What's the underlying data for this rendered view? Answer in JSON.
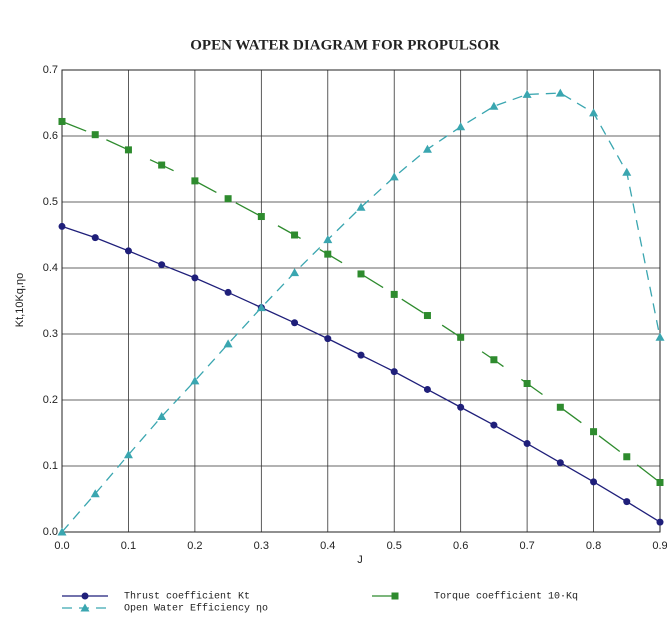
{
  "chart_data": {
    "type": "line",
    "title": "OPEN WATER DIAGRAM FOR PROPULSOR",
    "x_label": "J",
    "y_label": "Kt,10Kq,ηo",
    "x": [
      0,
      0.05,
      0.1,
      0.15,
      0.2,
      0.25,
      0.3,
      0.35,
      0.4,
      0.45,
      0.5,
      0.55,
      0.6,
      0.65,
      0.7,
      0.75,
      0.8,
      0.85,
      0.9
    ],
    "series": [
      {
        "name": "Thrust coefficient Kt",
        "color": "#1f1f7a",
        "marker": "circle",
        "dash": "none",
        "values": [
          0.463,
          0.446,
          0.426,
          0.405,
          0.385,
          0.363,
          0.34,
          0.317,
          0.293,
          0.268,
          0.243,
          0.216,
          0.189,
          0.162,
          0.134,
          0.105,
          0.076,
          0.046,
          0.015
        ]
      },
      {
        "name": "Torque coefficient 10·Kq",
        "color": "#2e8b2e",
        "marker": "square",
        "dash": "26 22",
        "values": [
          0.622,
          0.602,
          0.579,
          0.556,
          0.532,
          0.505,
          0.478,
          0.45,
          0.421,
          0.391,
          0.36,
          0.328,
          0.295,
          0.261,
          0.225,
          0.189,
          0.152,
          0.114,
          0.075
        ]
      },
      {
        "name": "Open Water Efficiency ηo",
        "color": "#3aa6b0",
        "marker": "triangle",
        "dash": "10 7",
        "values": [
          0,
          0.058,
          0.117,
          0.175,
          0.229,
          0.285,
          0.34,
          0.393,
          0.443,
          0.492,
          0.538,
          0.58,
          0.614,
          0.645,
          0.663,
          0.665,
          0.635,
          0.545,
          0.295
        ]
      }
    ],
    "xlim": [
      0,
      0.9
    ],
    "xticks": [
      {
        "value": 0,
        "label": "0.0"
      },
      0.1,
      0.2,
      0.3,
      0.4,
      0.5,
      0.6,
      0.7,
      0.8,
      0.9
    ],
    "ylim": [
      0,
      0.7
    ],
    "yticks": [
      {
        "value": 0,
        "label": "0.0"
      },
      0.1,
      0.2,
      0.3,
      0.4,
      0.5,
      0.6,
      0.7
    ],
    "grid": true
  }
}
